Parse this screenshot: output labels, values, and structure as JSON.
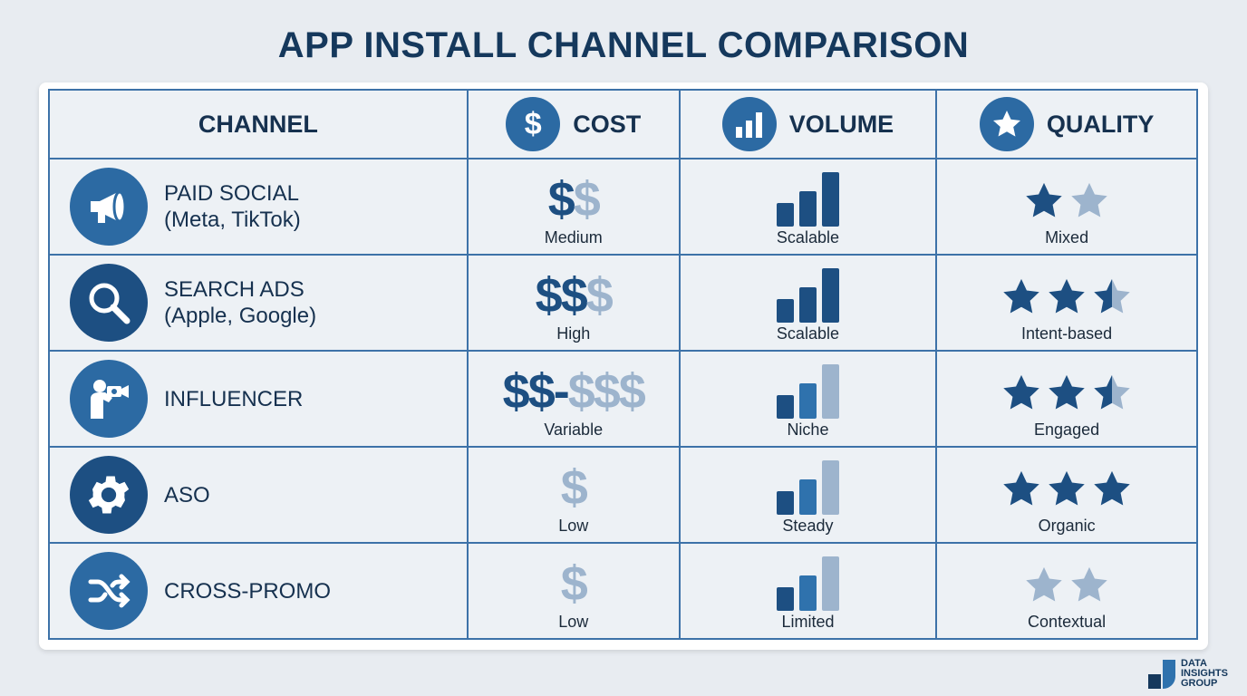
{
  "title": "APP INSTALL CHANNEL COMPARISON",
  "colors": {
    "dark": "#1d4f82",
    "mid": "#2f72ad",
    "light": "#9db4cd",
    "title": "#15385c",
    "grid": "#3d72a8"
  },
  "headers": [
    {
      "label": "CHANNEL",
      "icon": ""
    },
    {
      "label": "COST",
      "icon": "dollar-icon"
    },
    {
      "label": "VOLUME",
      "icon": "bar-chart-icon"
    },
    {
      "label": "QUALITY",
      "icon": "star-icon"
    }
  ],
  "rows": [
    {
      "name": "PAID SOCIAL",
      "sub": "(Meta, TikTok)",
      "icon": "megaphone-icon",
      "cost": {
        "dark": "$",
        "light": "$",
        "label": "Medium"
      },
      "volume": {
        "bars": [
          "dark",
          "dark",
          "dark"
        ],
        "label": "Scalable"
      },
      "quality": {
        "stars": [
          "dark",
          "light"
        ],
        "label": "Mixed"
      }
    },
    {
      "name": "SEARCH ADS",
      "sub": "(Apple, Google)",
      "icon": "magnifier-icon",
      "cost": {
        "dark": "$$",
        "light": "$",
        "label": "High"
      },
      "volume": {
        "bars": [
          "dark",
          "dark",
          "dark"
        ],
        "label": "Scalable"
      },
      "quality": {
        "stars": [
          "dark",
          "dark",
          "half"
        ],
        "label": "Intent-based"
      }
    },
    {
      "name": "INFLUENCER",
      "sub": "",
      "icon": "influencer-camera-icon",
      "cost": {
        "dark": "$$-",
        "light": "$$$",
        "label": "Variable"
      },
      "volume": {
        "bars": [
          "dark",
          "mid",
          "light"
        ],
        "label": "Niche"
      },
      "quality": {
        "stars": [
          "dark",
          "dark",
          "half"
        ],
        "label": "Engaged"
      }
    },
    {
      "name": "ASO",
      "sub": "",
      "icon": "gear-icon",
      "cost": {
        "dark": "",
        "light": "$",
        "label": "Low"
      },
      "volume": {
        "bars": [
          "dark",
          "mid",
          "light"
        ],
        "label": "Steady"
      },
      "quality": {
        "stars": [
          "dark",
          "dark",
          "dark"
        ],
        "label": "Organic"
      }
    },
    {
      "name": "CROSS-PROMO",
      "sub": "",
      "icon": "shuffle-icon",
      "cost": {
        "dark": "",
        "light": "$",
        "label": "Low"
      },
      "volume": {
        "bars": [
          "dark",
          "mid",
          "light"
        ],
        "label": "Limited"
      },
      "quality": {
        "stars": [
          "light",
          "light"
        ],
        "label": "Contextual"
      }
    }
  ],
  "logo": {
    "line1": "DATA",
    "line2": "INSIGHTS",
    "line3": "GROUP"
  }
}
